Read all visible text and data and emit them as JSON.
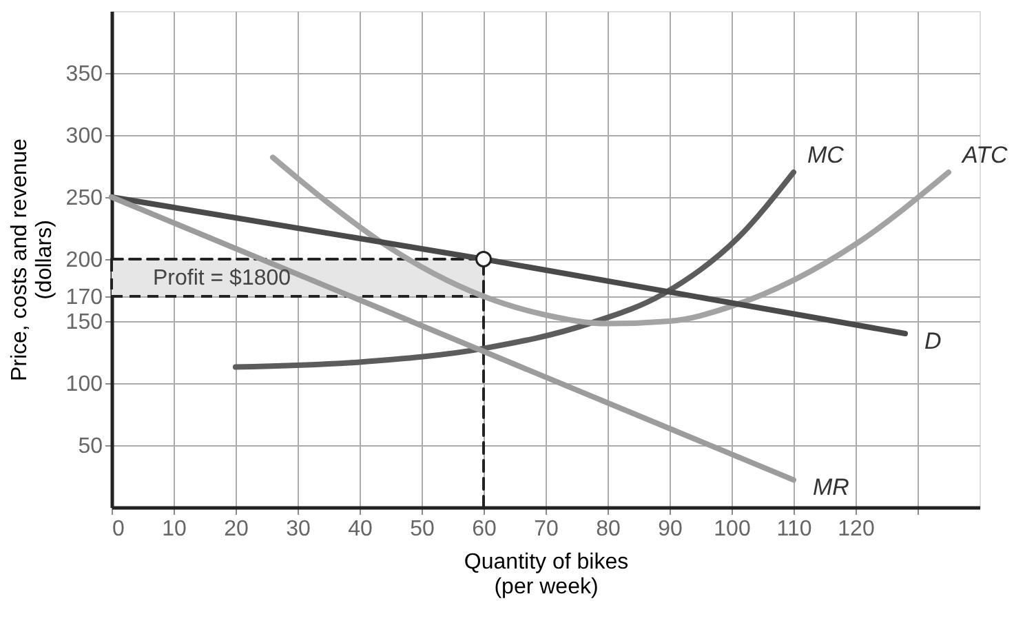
{
  "chart_data": {
    "type": "line",
    "xlabel": "Quantity of bikes\n(per week)",
    "ylabel": "Price, costs and revenue\n(dollars)",
    "xlim": [
      0,
      140
    ],
    "ylim": [
      0,
      400
    ],
    "xticks": [
      0,
      10,
      20,
      30,
      40,
      50,
      60,
      70,
      80,
      90,
      100,
      110,
      120,
      {
        "value": 130,
        "label": null
      }
    ],
    "yticks": [
      50,
      100,
      150,
      170,
      200,
      250,
      300,
      350
    ],
    "grid": true,
    "annotations": [
      "Profit = $1800"
    ],
    "series": [
      {
        "line_style": "dashed",
        "color": "#222222",
        "x": [
          60,
          60
        ],
        "values": [
          0,
          200
        ]
      },
      {
        "line_style": "dashed",
        "color": "#222222",
        "x": [
          0,
          60
        ],
        "values": [
          200,
          200
        ],
        "lower": [
          170,
          170
        ],
        "upper": [
          200,
          200
        ]
      },
      {
        "name": "MC",
        "line_style": "solid",
        "color": "#5c5c5c",
        "x": [
          20,
          40,
          60,
          77,
          89,
          101,
          110
        ],
        "values": [
          113,
          117,
          128,
          148,
          172,
          217,
          270
        ]
      },
      {
        "name": "ATC",
        "line_style": "solid",
        "color": "#a3a3a3",
        "x": [
          26,
          35,
          44,
          60,
          70,
          80,
          90,
          100,
          110,
          120,
          135
        ],
        "values": [
          282,
          245,
          212,
          170,
          155,
          148,
          150,
          162,
          183,
          212,
          270
        ]
      },
      {
        "name": "D",
        "line_style": "solid",
        "color": "#4a4a4a",
        "x": [
          0,
          60,
          128
        ],
        "values": [
          250,
          200,
          140
        ]
      },
      {
        "name": "MR",
        "line_style": "solid",
        "color": "#9c9c9c",
        "x": [
          0,
          110
        ],
        "values": [
          250,
          22
        ]
      },
      {
        "type": "scatter",
        "marker": "circle",
        "color": "#ffffff",
        "x": [
          60
        ],
        "values": [
          200
        ]
      }
    ]
  }
}
